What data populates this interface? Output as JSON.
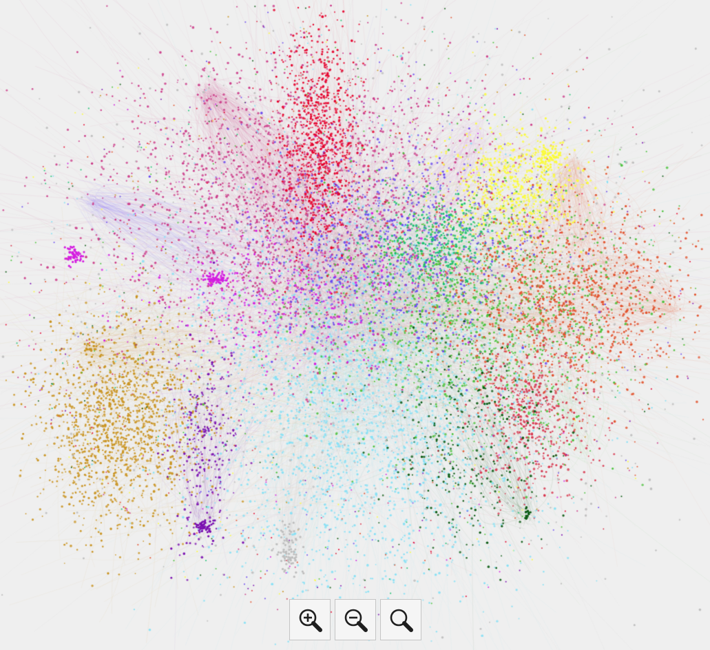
{
  "graph": {
    "background": "#efefef",
    "clusters": [
      {
        "name": "crimson-pink",
        "color": "#cc3d8a",
        "edge_color": "#d77aa8"
      },
      {
        "name": "red",
        "color": "#e5002b",
        "edge_color": "#e06a7a"
      },
      {
        "name": "violet-blue",
        "color": "#6b4bf0",
        "edge_color": "#9b86f2"
      },
      {
        "name": "light-cyan",
        "color": "#86e0f5",
        "edge_color": "#a7e6f6"
      },
      {
        "name": "orange-red",
        "color": "#e2502a",
        "edge_color": "#e8876b"
      },
      {
        "name": "green",
        "color": "#4cc23c",
        "edge_color": "#8fd68a"
      },
      {
        "name": "mustard",
        "color": "#c99320",
        "edge_color": "#d7b56a"
      },
      {
        "name": "yellow",
        "color": "#fbfb3c",
        "edge_color": "#f4f08a"
      },
      {
        "name": "purple",
        "color": "#7a0fb0",
        "edge_color": "#a26ac6"
      },
      {
        "name": "magenta",
        "color": "#d41ee0",
        "edge_color": "#d98be0"
      },
      {
        "name": "dark-green",
        "color": "#0a5a12",
        "edge_color": "#5b8a5e"
      },
      {
        "name": "rose",
        "color": "#d8364e",
        "edge_color": "#e2808e"
      },
      {
        "name": "teal-green",
        "color": "#18c070",
        "edge_color": "#7ad7a8"
      },
      {
        "name": "grey",
        "color": "#bdbdbd",
        "edge_color": "#cfcfcf"
      }
    ]
  },
  "controls": {
    "zoom_in": {
      "icon": "zoom-in-icon"
    },
    "zoom_out": {
      "icon": "zoom-out-icon"
    },
    "zoom_reset": {
      "icon": "zoom-reset-icon"
    }
  }
}
